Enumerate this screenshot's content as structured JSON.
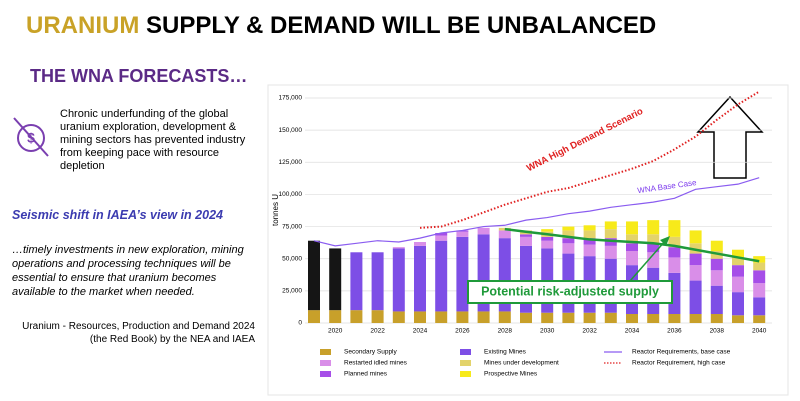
{
  "header": {
    "title_highlight": "URANIUM",
    "title_rest": "SUPPLY & DEMAND WILL BE UNBALANCED",
    "subtitle": "THE WNA FORECASTS…"
  },
  "body": {
    "point": "Chronic underfunding of the global uranium exploration, development & mining sectors has prevented industry from keeping pace with resource depletion",
    "heading": "Seismic shift in IAEA’s view in 2024",
    "quote": "…timely investments in new exploration, mining operations and processing techniques will be essential to ensure that uranium becomes available to the market when needed.",
    "source": "Uranium - Resources, Production and Demand 2024 (the Red Book) by the NEA and IAEA"
  },
  "chart_data": {
    "type": "bar",
    "stacked": true,
    "y_label": "tonnes U",
    "categories": [
      null,
      "2020",
      null,
      "2022",
      null,
      "2024",
      null,
      "2026",
      null,
      "2028",
      null,
      "2030",
      null,
      "2032",
      null,
      "2034",
      null,
      "2036",
      null,
      "2038",
      null,
      "2040"
    ],
    "ylim": [
      0,
      175000
    ],
    "yticks": [
      0,
      {
        "value": 25000,
        "label": "25,000"
      },
      {
        "value": 50000,
        "label": "50,000"
      },
      {
        "value": 75000,
        "label": "75,000"
      },
      {
        "value": 100000,
        "label": "100,000"
      },
      {
        "value": 125000,
        "label": "125,000"
      },
      {
        "value": 150000,
        "label": "150,000"
      },
      {
        "value": 175000,
        "label": "175,000"
      }
    ],
    "grid": true,
    "series": [
      {
        "name": "Secondary Supply",
        "color": "#c8a02a",
        "values": [
          10000,
          10000,
          10000,
          10000,
          9000,
          9000,
          9000,
          9000,
          9000,
          9000,
          8000,
          8000,
          8000,
          8000,
          8000,
          7000,
          7000,
          7000,
          7000,
          7000,
          6000,
          6000
        ]
      },
      {
        "name": "Restarted idled mines",
        "color": "#d98ee8",
        "values": [
          0,
          0,
          0,
          0,
          1000,
          3000,
          4000,
          4000,
          5000,
          6000,
          7000,
          6000,
          8000,
          9000,
          10000,
          11000,
          12000,
          12000,
          12000,
          12000,
          12000,
          11000
        ]
      },
      {
        "name": "Planned mines",
        "color": "#a64ee8",
        "values": [
          0,
          0,
          0,
          0,
          0,
          0,
          2000,
          1000,
          0,
          0,
          2000,
          3000,
          4000,
          5000,
          6000,
          6000,
          7000,
          8000,
          9000,
          9000,
          9000,
          10000
        ]
      },
      {
        "name": "Existing Mines",
        "color": "#7d4ee6",
        "values": [
          0,
          0,
          45000,
          45000,
          49000,
          51000,
          55000,
          58000,
          60000,
          57000,
          52000,
          50000,
          46000,
          44000,
          42000,
          38000,
          36000,
          32000,
          26000,
          22000,
          18000,
          14000
        ]
      },
      {
        "name": "Mines under development",
        "color": "#e3d36b",
        "values": [
          0,
          0,
          0,
          0,
          0,
          0,
          0,
          0,
          0,
          2000,
          3000,
          4000,
          6000,
          6000,
          7000,
          7000,
          7000,
          8000,
          8000,
          6000,
          6000,
          6000
        ]
      },
      {
        "name": "Prospective Mines",
        "color": "#f7ea1a",
        "values": [
          0,
          0,
          0,
          0,
          0,
          0,
          0,
          0,
          0,
          0,
          0,
          2000,
          3000,
          4000,
          6000,
          10000,
          11000,
          13000,
          10000,
          8000,
          6000,
          5000
        ]
      },
      {
        "color": "#151515",
        "values": [
          54000,
          48000,
          0,
          0,
          0,
          0,
          0,
          0,
          0,
          0,
          0,
          0,
          0,
          0,
          0,
          0,
          0,
          0,
          0,
          0,
          0,
          0
        ]
      },
      {
        "name": "Reactor Requirements, base case",
        "type": "line",
        "color": "#8a5cf0",
        "values": [
          64000,
          60000,
          62000,
          64000,
          63000,
          66000,
          70000,
          72000,
          75000,
          76000,
          80000,
          82000,
          85000,
          87000,
          90000,
          92000,
          94000,
          97000,
          104000,
          106000,
          108000,
          113000
        ]
      },
      {
        "name": "Reactor Requirement, high case",
        "type": "line",
        "dashed": true,
        "color": "#e02020",
        "values": [
          null,
          null,
          null,
          null,
          null,
          74000,
          75000,
          80000,
          86000,
          92000,
          97000,
          102000,
          105000,
          110000,
          115000,
          120000,
          126000,
          135000,
          145000,
          158000,
          170000,
          180000
        ]
      },
      {
        "name": "Potential risk-adjusted supply",
        "type": "line",
        "in_legend": false,
        "color": "#1f9a3a",
        "values": [
          null,
          null,
          null,
          null,
          null,
          null,
          null,
          null,
          null,
          73000,
          71000,
          69000,
          67000,
          65000,
          64000,
          63000,
          62000,
          60000,
          57000,
          54000,
          51000,
          48000
        ]
      }
    ],
    "annotations": [
      {
        "text": "WNA High Demand Scenario",
        "color": "#e02020"
      },
      {
        "text": "WNA Base Case",
        "color": "#7c3aed"
      }
    ]
  }
}
